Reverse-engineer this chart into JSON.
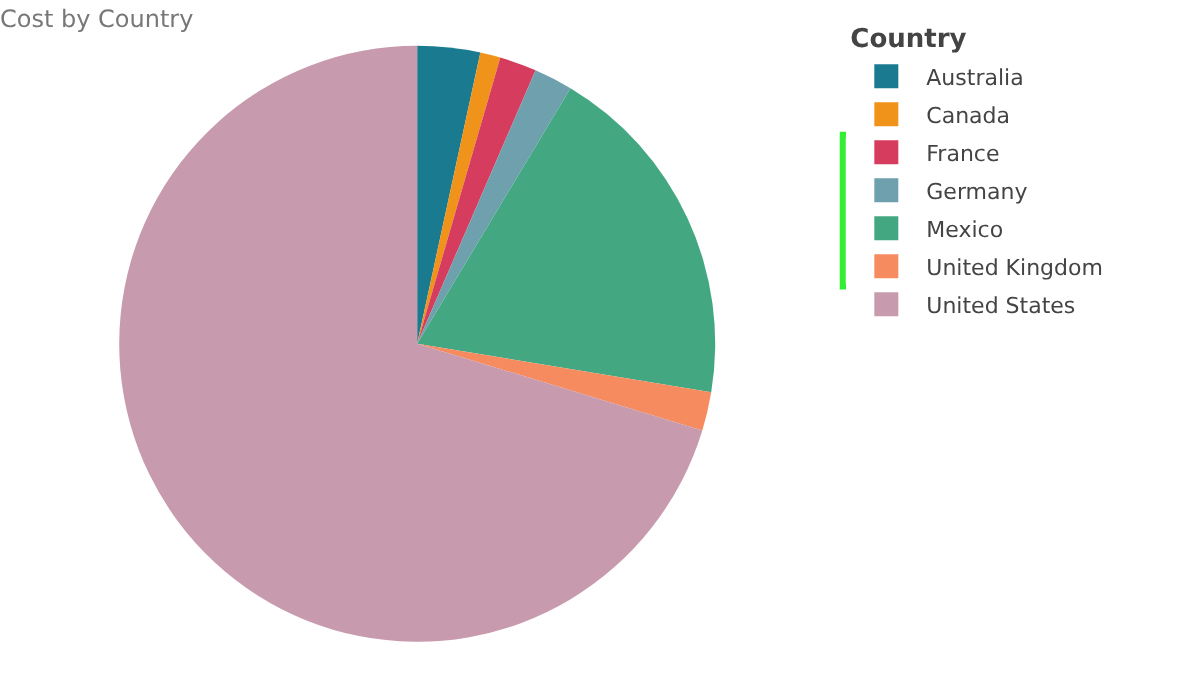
{
  "chart_data": {
    "type": "pie",
    "title": "Cost by Country",
    "legend_title": "Country",
    "legend": "top right",
    "categories": [
      "Australia",
      "Canada",
      "France",
      "Germany",
      "Mexico",
      "United Kingdom",
      "United States"
    ],
    "values": [
      3.4,
      1.1,
      2.0,
      2.1,
      19.0,
      2.1,
      70.3
    ],
    "colors": [
      "#1a7a8f",
      "#f0931a",
      "#d63c5e",
      "#6fa0ad",
      "#43a882",
      "#f58b5e",
      "#c89aad"
    ]
  }
}
